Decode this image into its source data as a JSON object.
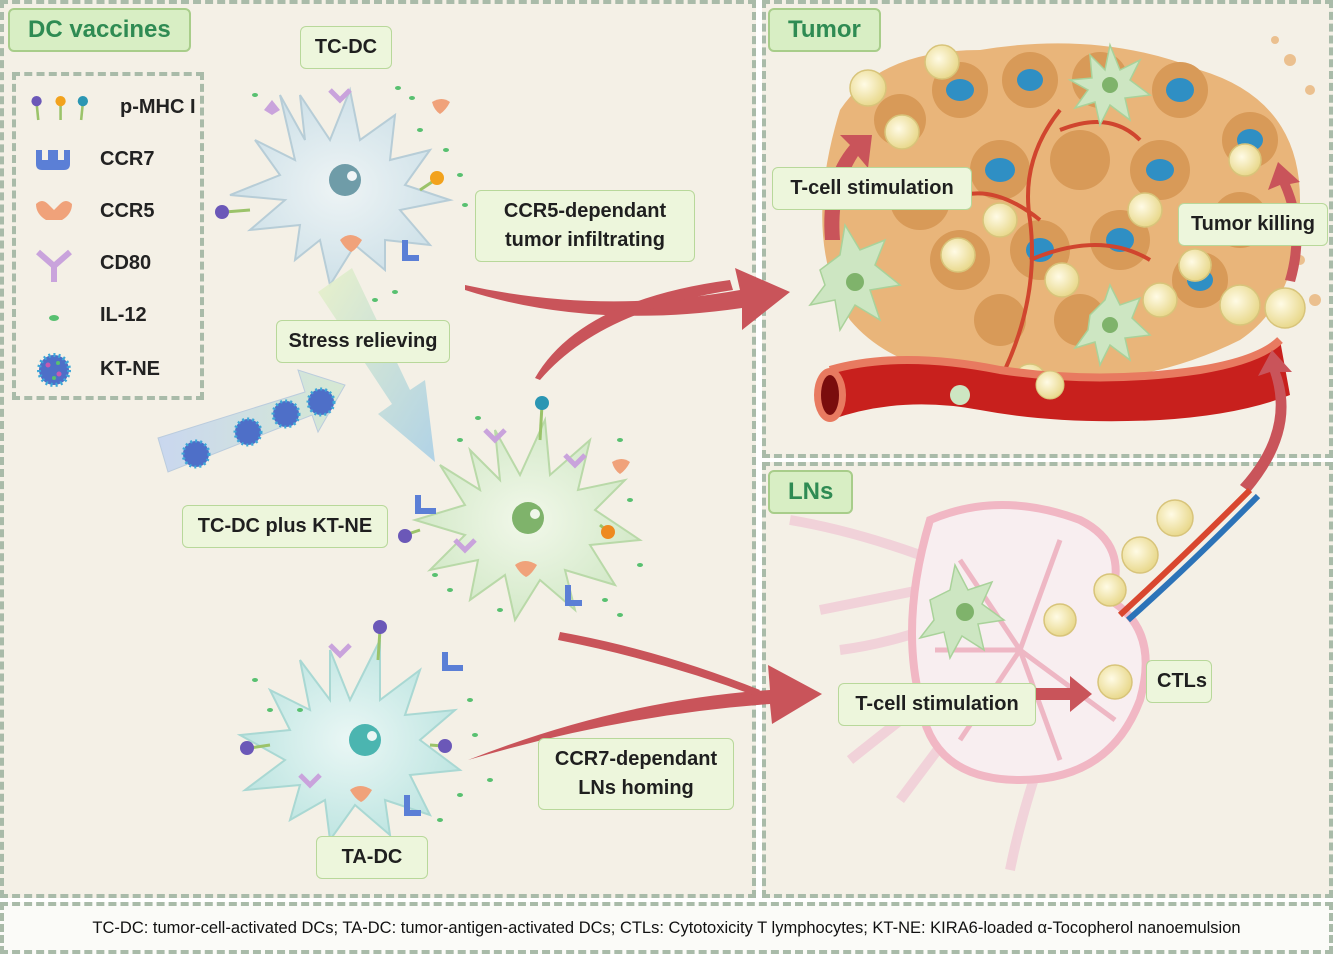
{
  "panels": {
    "dc_vaccines": "DC vaccines",
    "tumor": "Tumor",
    "lns": "LNs"
  },
  "legend": [
    {
      "icon": "p-mhc-i-icon",
      "label": "p-MHC I"
    },
    {
      "icon": "ccr7-icon",
      "label": "CCR7"
    },
    {
      "icon": "ccr5-icon",
      "label": "CCR5"
    },
    {
      "icon": "cd80-icon",
      "label": "CD80"
    },
    {
      "icon": "il-12-icon",
      "label": "IL-12"
    },
    {
      "icon": "kt-ne-icon",
      "label": "KT-NE"
    }
  ],
  "labels": {
    "tc_dc": "TC-DC",
    "ccr5_line1": "CCR5-dependant",
    "ccr5_line2": "tumor infiltrating",
    "stress_relieving": "Stress relieving",
    "tc_dc_plus_kt_ne": "TC-DC plus KT-NE",
    "ccr7_line1": "CCR7-dependant",
    "ccr7_line2": "LNs homing",
    "ta_dc": "TA-DC",
    "tumor_t_cell_stimulation": "T-cell stimulation",
    "tumor_killing": "Tumor killing",
    "ln_t_cell_stimulation": "T-cell stimulation",
    "ctls": "CTLs"
  },
  "footer": "TC-DC: tumor-cell-activated DCs; TA-DC: tumor-antigen-activated DCs; CTLs: Cytotoxicity T lymphocytes; KT-NE: KIRA6-loaded α-Tocopherol nanoemulsion",
  "colors": {
    "panel_bg": "#f4f0e6",
    "panel_border": "#a9bba9",
    "label_bg": "#edf6dc",
    "title_text": "#2f8b53",
    "arrow": "#c9545a",
    "dc_cell": "#dfe9f0",
    "tumor_cell": "#e9b57a",
    "nucleus": "#2f8fc4",
    "t_cell": "#f6eebd",
    "vessel": "#c8201d",
    "ccr7": "#5b7fd6",
    "ccr5": "#f0a27a",
    "cd80": "#c9a3dc",
    "il12": "#58c070"
  }
}
